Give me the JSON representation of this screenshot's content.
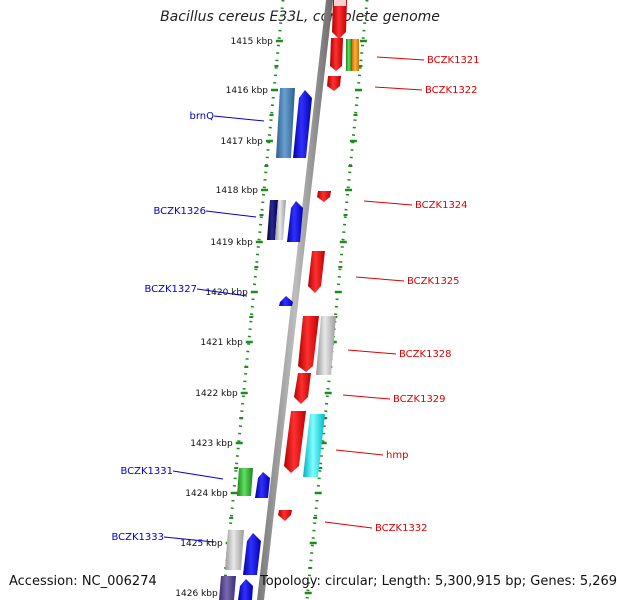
{
  "title": "Bacillus cereus E33L, complete genome",
  "footer": {
    "accession": "Accession: NC_006274",
    "topology": "Topology: circular; Length: 5,300,915 bp; Genes: 5,269"
  },
  "colors": {
    "backbone": "#8a8a8a",
    "tick": "#1f8a1f",
    "forward_label": "#0000cc",
    "reverse_label": "#dd0000"
  },
  "ticks": [
    "1415 kbp",
    "1416 kbp",
    "1417 kbp",
    "1418 kbp",
    "1419 kbp",
    "1420 kbp",
    "1421 kbp",
    "1422 kbp",
    "1423 kbp",
    "1424 kbp",
    "1425 kbp",
    "1426 kbp"
  ],
  "labels": [
    {
      "text": "BCZK1321",
      "strand": "reverse"
    },
    {
      "text": "BCZK1322",
      "strand": "reverse"
    },
    {
      "text": "brnQ",
      "strand": "forward"
    },
    {
      "text": "BCZK1326",
      "strand": "forward"
    },
    {
      "text": "BCZK1324",
      "strand": "reverse"
    },
    {
      "text": "BCZK1325",
      "strand": "reverse"
    },
    {
      "text": "BCZK1327",
      "strand": "forward"
    },
    {
      "text": "BCZK1328",
      "strand": "reverse"
    },
    {
      "text": "BCZK1329",
      "strand": "reverse"
    },
    {
      "text": "hmp",
      "strand": "reverse"
    },
    {
      "text": "BCZK1331",
      "strand": "forward"
    },
    {
      "text": "BCZK1332",
      "strand": "reverse"
    },
    {
      "text": "BCZK1333",
      "strand": "forward"
    }
  ]
}
